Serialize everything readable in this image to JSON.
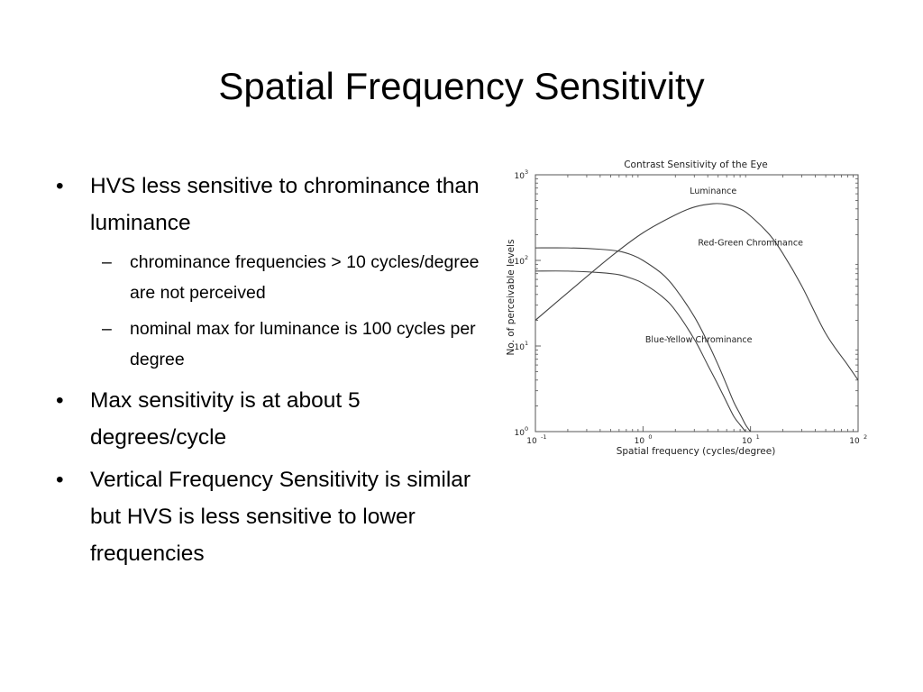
{
  "slide": {
    "title": "Spatial Frequency Sensitivity",
    "bullets": [
      {
        "marker": "•",
        "text": "HVS less sensitive to chrominance than luminance",
        "sub": [
          {
            "marker": "–",
            "text": "chrominance frequencies > 10 cycles/degree are not perceived"
          },
          {
            "marker": "–",
            "text": "nominal max for luminance is 100 cycles per degree"
          }
        ]
      },
      {
        "marker": "•",
        "text": "Max sensitivity is at about 5 degrees/cycle",
        "sub": []
      },
      {
        "marker": "•",
        "text": "Vertical Frequency Sensitivity is similar but HVS is less sensitive to lower frequencies",
        "sub": []
      }
    ]
  },
  "chart_data": {
    "type": "line",
    "title": "Contrast Sensitivity of the Eye",
    "xlabel": "Spatial frequency (cycles/degree)",
    "ylabel": "No. of perceivable levels",
    "xscale": "log",
    "yscale": "log",
    "xlim": [
      0.1,
      100
    ],
    "ylim": [
      1,
      1000
    ],
    "xticks": [
      {
        "base": "10",
        "exp": "-1"
      },
      {
        "base": "10",
        "exp": "0"
      },
      {
        "base": "10",
        "exp": "1"
      },
      {
        "base": "10",
        "exp": "2"
      }
    ],
    "yticks": [
      {
        "base": "10",
        "exp": "0"
      },
      {
        "base": "10",
        "exp": "1"
      },
      {
        "base": "10",
        "exp": "2"
      },
      {
        "base": "10",
        "exp": "3"
      }
    ],
    "grid": false,
    "line_color": "#444444",
    "series": [
      {
        "name": "Luminance",
        "x": [
          0.1,
          0.2,
          0.5,
          1,
          2,
          3,
          4.5,
          6,
          8,
          10,
          15,
          20,
          30,
          50,
          80,
          100
        ],
        "y": [
          20,
          42,
          110,
          210,
          340,
          420,
          460,
          450,
          400,
          330,
          200,
          120,
          50,
          14,
          6,
          4
        ]
      },
      {
        "name": "Red-Green Chrominance",
        "x": [
          0.1,
          0.2,
          0.4,
          0.6,
          0.8,
          1,
          1.5,
          2,
          3,
          4,
          5,
          6,
          7,
          8,
          9,
          10
        ],
        "y": [
          140,
          140,
          135,
          128,
          115,
          100,
          70,
          47,
          22,
          11,
          6,
          3.5,
          2.2,
          1.6,
          1.2,
          1
        ]
      },
      {
        "name": "Blue-Yellow Chrominance",
        "x": [
          0.1,
          0.2,
          0.4,
          0.6,
          0.8,
          1,
          1.5,
          2,
          3,
          4,
          5,
          6,
          7,
          8,
          9
        ],
        "y": [
          75,
          75,
          72,
          68,
          61,
          54,
          38,
          26,
          12,
          6,
          3.5,
          2.2,
          1.5,
          1.2,
          1
        ]
      }
    ]
  }
}
